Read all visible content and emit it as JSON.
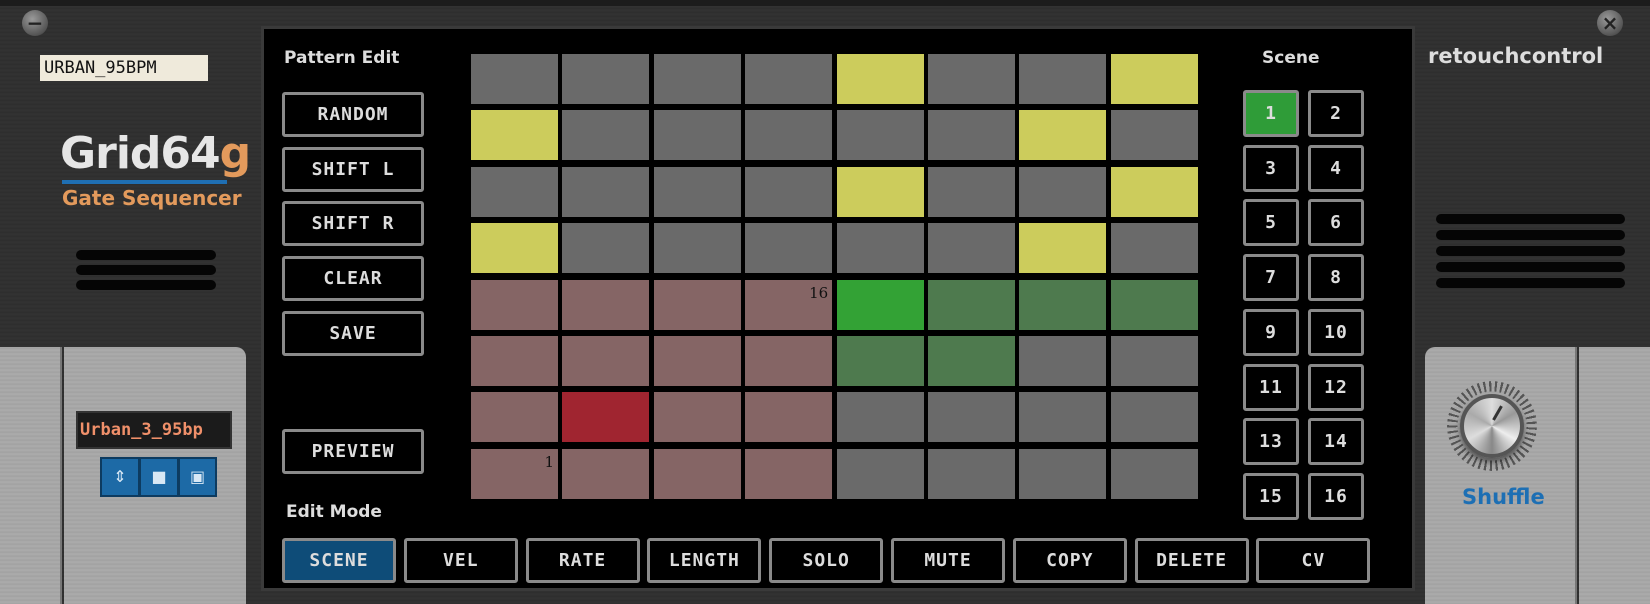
{
  "device": {
    "tape_label": "URBAN_95BPM",
    "logo_main": "Grid64",
    "logo_accent": "g",
    "logo_subtitle": "Gate Sequencer",
    "brand": "retouchcontrol",
    "patch_name": "Urban_3_95bp",
    "knob": {
      "label": "Shuffle",
      "value_fraction": 0.6
    }
  },
  "pattern_edit": {
    "title": "Pattern Edit",
    "buttons": [
      "RANDOM",
      "SHIFT L",
      "SHIFT R",
      "CLEAR",
      "SAVE"
    ],
    "preview": "PREVIEW"
  },
  "edit_mode": {
    "title": "Edit Mode",
    "buttons": [
      "SCENE",
      "VEL",
      "RATE",
      "LENGTH",
      "SOLO",
      "MUTE",
      "COPY",
      "DELETE",
      "CV"
    ],
    "active": "SCENE"
  },
  "scene": {
    "title": "Scene",
    "buttons": [
      "1",
      "2",
      "3",
      "4",
      "5",
      "6",
      "7",
      "8",
      "9",
      "10",
      "11",
      "12",
      "13",
      "14",
      "15",
      "16"
    ],
    "active": "1"
  },
  "grid": {
    "colors": {
      "off": "#6a6a6a",
      "gate": "#cccc5c",
      "step": "#856565",
      "step_current": "#a02530",
      "length_current": "#33a235",
      "length": "#4e7a4e"
    },
    "rows": [
      [
        "off",
        "off",
        "off",
        "off",
        "gate",
        "off",
        "off",
        "gate"
      ],
      [
        "gate",
        "off",
        "off",
        "off",
        "off",
        "off",
        "gate",
        "off"
      ],
      [
        "off",
        "off",
        "off",
        "off",
        "gate",
        "off",
        "off",
        "gate"
      ],
      [
        "gate",
        "off",
        "off",
        "off",
        "off",
        "off",
        "gate",
        "off"
      ],
      [
        "step",
        "step",
        "step",
        "step",
        "length_current",
        "length",
        "length",
        "length"
      ],
      [
        "step",
        "step",
        "step",
        "step",
        "length",
        "length",
        "off",
        "off"
      ],
      [
        "step",
        "step_current",
        "step",
        "step",
        "off",
        "off",
        "off",
        "off"
      ],
      [
        "step",
        "step",
        "step",
        "step",
        "off",
        "off",
        "off",
        "off"
      ]
    ],
    "cell_labels": [
      {
        "row": 4,
        "col": 3,
        "text": "16"
      },
      {
        "row": 7,
        "col": 0,
        "text": "1"
      }
    ]
  }
}
